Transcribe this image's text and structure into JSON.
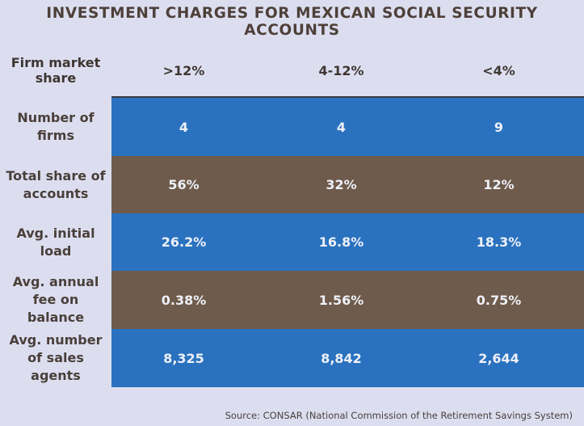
{
  "title": "INVESTMENT CHARGES FOR MEXICAN SOCIAL SECURITY ACCOUNTS",
  "colors": {
    "blue": "#2a72bf",
    "brown": "#6e5b4b",
    "background": "#dcdef0"
  },
  "chart_data": {
    "type": "table",
    "title": "INVESTMENT CHARGES FOR MEXICAN SOCIAL SECURITY ACCOUNTS",
    "header_label": "Firm market share",
    "columns": [
      ">12%",
      "4-12%",
      "<4%"
    ],
    "rows": [
      {
        "label": "Number of firms",
        "values": [
          "4",
          "4",
          "9"
        ],
        "color": "blue"
      },
      {
        "label": "Total share of accounts",
        "values": [
          "56%",
          "32%",
          "12%"
        ],
        "color": "brown"
      },
      {
        "label": "Avg. initial load",
        "values": [
          "26.2%",
          "16.8%",
          "18.3%"
        ],
        "color": "blue"
      },
      {
        "label": "Avg. annual fee on balance",
        "values": [
          "0.38%",
          "1.56%",
          "0.75%"
        ],
        "color": "brown"
      },
      {
        "label": "Avg. number of sales agents",
        "values": [
          "8,325",
          "8,842",
          "2,644"
        ],
        "color": "blue"
      }
    ]
  },
  "source": "Source: CONSAR (National Commission of the Retirement Savings System)"
}
